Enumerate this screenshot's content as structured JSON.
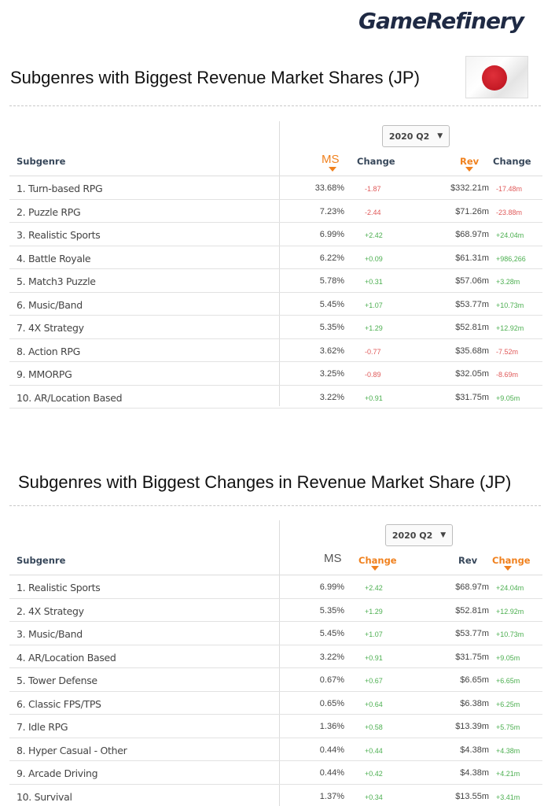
{
  "brand": "GameRefinery",
  "top": {
    "title": "Subgenres with Biggest Revenue Market Shares (JP)",
    "period": "2020 Q2",
    "headers": {
      "subgenre": "Subgenre",
      "ms": "MS",
      "change": "Change",
      "rev": "Rev",
      "rev_change": "Change"
    },
    "rows": [
      {
        "name": "1. Turn-based RPG",
        "ms": "33.68%",
        "change": "-1.87",
        "rev": "$332.21m",
        "rev_change": "-17.48m"
      },
      {
        "name": "2. Puzzle RPG",
        "ms": "7.23%",
        "change": "-2.44",
        "rev": "$71.26m",
        "rev_change": "-23.88m"
      },
      {
        "name": "3. Realistic Sports",
        "ms": "6.99%",
        "change": "+2.42",
        "rev": "$68.97m",
        "rev_change": "+24.04m"
      },
      {
        "name": "4. Battle Royale",
        "ms": "6.22%",
        "change": "+0.09",
        "rev": "$61.31m",
        "rev_change": "+986,266"
      },
      {
        "name": "5. Match3 Puzzle",
        "ms": "5.78%",
        "change": "+0.31",
        "rev": "$57.06m",
        "rev_change": "+3.28m"
      },
      {
        "name": "6. Music/Band",
        "ms": "5.45%",
        "change": "+1.07",
        "rev": "$53.77m",
        "rev_change": "+10.73m"
      },
      {
        "name": "7. 4X Strategy",
        "ms": "5.35%",
        "change": "+1.29",
        "rev": "$52.81m",
        "rev_change": "+12.92m"
      },
      {
        "name": "8. Action RPG",
        "ms": "3.62%",
        "change": "-0.77",
        "rev": "$35.68m",
        "rev_change": "-7.52m"
      },
      {
        "name": "9. MMORPG",
        "ms": "3.25%",
        "change": "-0.89",
        "rev": "$32.05m",
        "rev_change": "-8.69m"
      },
      {
        "name": "10. AR/Location Based",
        "ms": "3.22%",
        "change": "+0.91",
        "rev": "$31.75m",
        "rev_change": "+9.05m"
      }
    ]
  },
  "bottom": {
    "title": "Subgenres with Biggest Changes in Revenue Market Share (JP)",
    "period": "2020 Q2",
    "headers": {
      "subgenre": "Subgenre",
      "ms": "MS",
      "change": "Change",
      "rev": "Rev",
      "rev_change": "Change"
    },
    "rows": [
      {
        "name": "1. Realistic Sports",
        "ms": "6.99%",
        "change": "+2.42",
        "rev": "$68.97m",
        "rev_change": "+24.04m"
      },
      {
        "name": "2. 4X Strategy",
        "ms": "5.35%",
        "change": "+1.29",
        "rev": "$52.81m",
        "rev_change": "+12.92m"
      },
      {
        "name": "3. Music/Band",
        "ms": "5.45%",
        "change": "+1.07",
        "rev": "$53.77m",
        "rev_change": "+10.73m"
      },
      {
        "name": "4. AR/Location Based",
        "ms": "3.22%",
        "change": "+0.91",
        "rev": "$31.75m",
        "rev_change": "+9.05m"
      },
      {
        "name": "5. Tower Defense",
        "ms": "0.67%",
        "change": "+0.67",
        "rev": "$6.65m",
        "rev_change": "+6.65m"
      },
      {
        "name": "6. Classic FPS/TPS",
        "ms": "0.65%",
        "change": "+0.64",
        "rev": "$6.38m",
        "rev_change": "+6.25m"
      },
      {
        "name": "7. Idle RPG",
        "ms": "1.36%",
        "change": "+0.58",
        "rev": "$13.39m",
        "rev_change": "+5.75m"
      },
      {
        "name": "8. Hyper Casual - Other",
        "ms": "0.44%",
        "change": "+0.44",
        "rev": "$4.38m",
        "rev_change": "+4.38m"
      },
      {
        "name": "9. Arcade Driving",
        "ms": "0.44%",
        "change": "+0.42",
        "rev": "$4.38m",
        "rev_change": "+4.21m"
      },
      {
        "name": "10. Survival",
        "ms": "1.37%",
        "change": "+0.34",
        "rev": "$13.55m",
        "rev_change": "+3.41m"
      }
    ]
  },
  "colors": {
    "accent": "#f0811e",
    "positive": "#4caf50",
    "negative": "#e05a5a"
  }
}
